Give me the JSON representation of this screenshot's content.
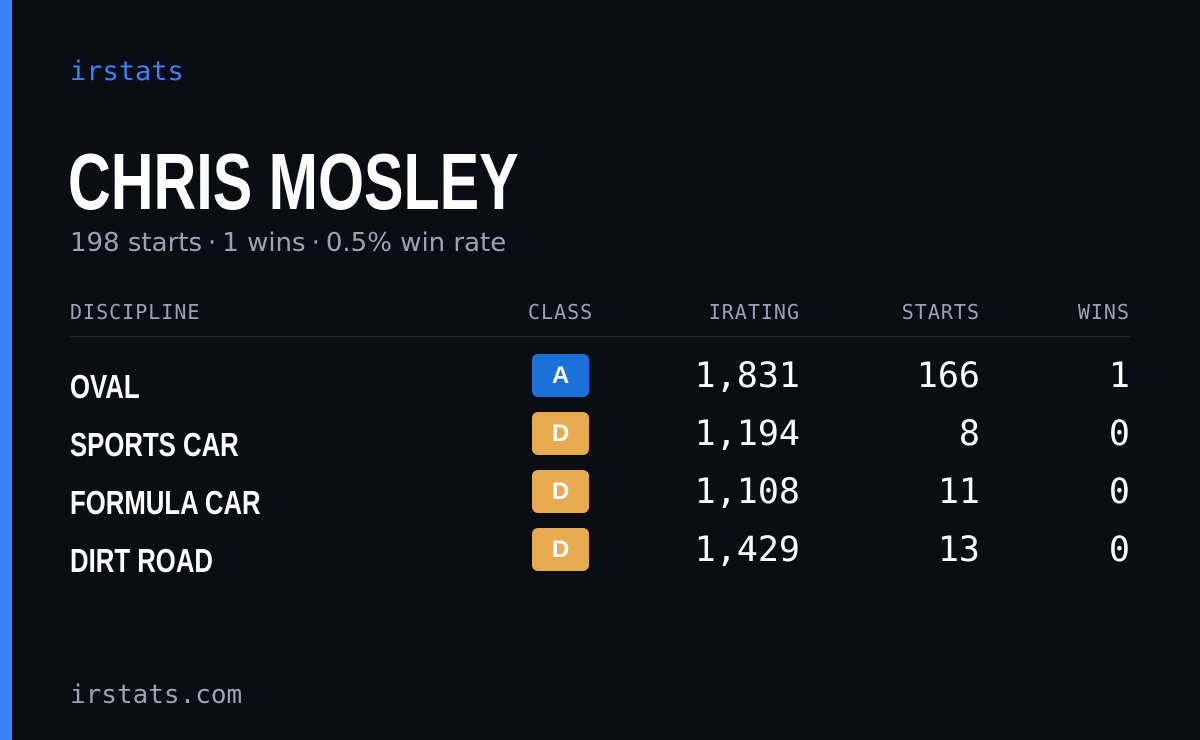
{
  "brand": "irstats",
  "player": {
    "name": "CHRIS MOSLEY",
    "starts_text": "198 starts",
    "wins_text": "1 wins",
    "win_rate_text": "0.5% win rate",
    "separator": "·"
  },
  "table": {
    "headers": {
      "discipline": "DISCIPLINE",
      "class": "CLASS",
      "irating": "IRATING",
      "starts": "STARTS",
      "wins": "WINS"
    },
    "rows": [
      {
        "discipline": "OVAL",
        "class": "A",
        "irating": "1,831",
        "starts": "166",
        "wins": "1",
        "class_color": "#1a72d9"
      },
      {
        "discipline": "SPORTS CAR",
        "class": "D",
        "irating": "1,194",
        "starts": "8",
        "wins": "0",
        "class_color": "#e8aa4e"
      },
      {
        "discipline": "FORMULA CAR",
        "class": "D",
        "irating": "1,108",
        "starts": "11",
        "wins": "0",
        "class_color": "#e8aa4e"
      },
      {
        "discipline": "DIRT ROAD",
        "class": "D",
        "irating": "1,429",
        "starts": "13",
        "wins": "0",
        "class_color": "#e8aa4e"
      }
    ]
  },
  "footer": {
    "url": "irstats.com"
  },
  "colors": {
    "background": "#0a0d14",
    "accent": "#3b82f6",
    "muted_text": "#9aa3b5",
    "class_a": "#1a72d9",
    "class_d": "#e8aa4e"
  }
}
